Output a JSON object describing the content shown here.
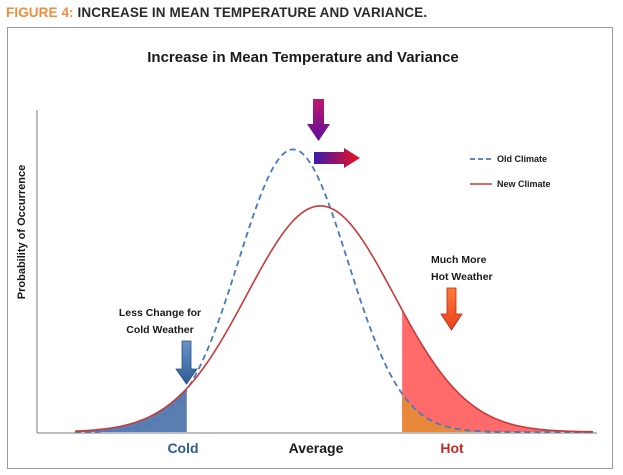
{
  "figure_label": {
    "number": "FIGURE 4:",
    "title": "INCREASE IN MEAN TEMPERATURE AND VARIANCE."
  },
  "colors": {
    "old_climate": "#4a78c0",
    "new_climate": "#c83a3a",
    "cold_fill": "#5b7eb0",
    "hot_fill": "#ff6a6a",
    "overlap_fill": "#e9883a",
    "cold_label": "#2e5a94",
    "hot_label": "#c62828"
  },
  "chart_data": {
    "type": "area",
    "title": "Increase in Mean Temperature and Variance",
    "ylabel": "Probability of Occurrence",
    "xlabel": "",
    "x_tick_labels": {
      "cold": "Cold",
      "average": "Average",
      "hot": "Hot"
    },
    "xlim": [
      -4.0,
      5.5
    ],
    "ylim": [
      0,
      1.0
    ],
    "series": [
      {
        "name": "Old Climate",
        "style": "dashed",
        "mean": 0.0,
        "std": 1.0,
        "peak": 0.875
      },
      {
        "name": "New Climate",
        "style": "solid",
        "mean": 0.5,
        "std": 1.35,
        "peak": 0.7
      }
    ],
    "shaded_regions": [
      {
        "name": "cold-tail",
        "x_start": -4.0,
        "x_end": -1.95
      },
      {
        "name": "hot-tail",
        "x_start": 2.0,
        "x_end": 5.5
      }
    ],
    "legend": {
      "placement": "right",
      "entries": [
        "Old Climate",
        "New Climate"
      ]
    },
    "annotations": {
      "cold": [
        "Less Change for",
        "Cold Weather"
      ],
      "hot": [
        "Much More",
        "Hot Weather"
      ]
    }
  }
}
